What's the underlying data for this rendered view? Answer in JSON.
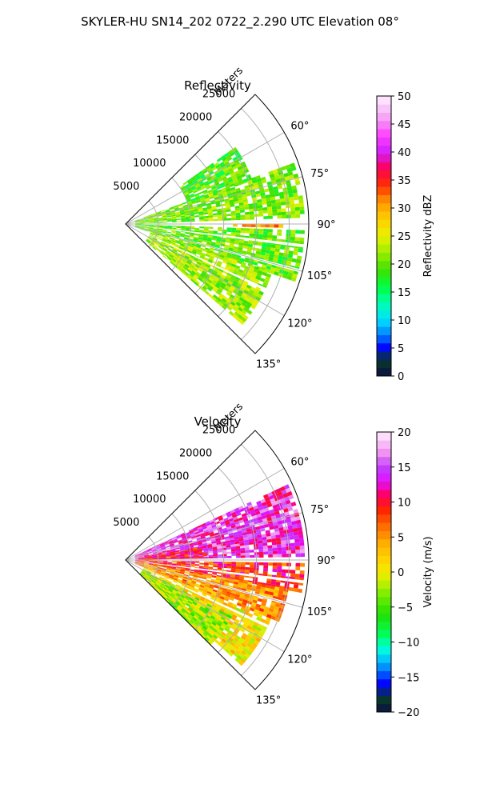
{
  "figure": {
    "suptitle": "SKYLER-HU  SN14_202  0722_2.290 UTC Elevation 08°"
  },
  "chart_data": [
    {
      "type": "heatmap",
      "subtype": "polar-sector-ppi",
      "title": "Reflectivity",
      "radial_label": "Meters",
      "range_ticks": [
        5000,
        10000,
        15000,
        20000,
        25000
      ],
      "range_tick_labels": [
        "5000",
        "10000",
        "15000",
        "20000",
        "25000"
      ],
      "range_max": 28000,
      "azimuth_ticks": [
        60,
        75,
        90,
        105,
        120,
        135
      ],
      "azimuth_tick_labels": [
        "60°",
        "75°",
        "90°",
        "105°",
        "120°",
        "135°"
      ],
      "azimuth_range": [
        45,
        135
      ],
      "grid": true,
      "colorbar": {
        "label": "Reflectivity dBZ",
        "min": 0,
        "max": 50,
        "ticks": [
          0,
          5,
          10,
          15,
          20,
          25,
          30,
          35,
          40,
          45,
          50
        ],
        "tick_labels": [
          "0",
          "5",
          "10",
          "15",
          "20",
          "25",
          "30",
          "35",
          "40",
          "45",
          "50"
        ],
        "levels": 34,
        "stops": [
          [
            0,
            "#0a1040"
          ],
          [
            3,
            "#0a3a2a"
          ],
          [
            5,
            "#0000ff"
          ],
          [
            7,
            "#0070ff"
          ],
          [
            10,
            "#00e0ff"
          ],
          [
            13,
            "#00ffb0"
          ],
          [
            16,
            "#00ff40"
          ],
          [
            19,
            "#40e000"
          ],
          [
            22,
            "#9aee00"
          ],
          [
            25,
            "#eaf000"
          ],
          [
            28,
            "#ffd000"
          ],
          [
            31,
            "#ff9a00"
          ],
          [
            34,
            "#ff3000"
          ],
          [
            37,
            "#ff0050"
          ],
          [
            40,
            "#d020ff"
          ],
          [
            43,
            "#ff40ff"
          ],
          [
            46,
            "#f4a0f4"
          ],
          [
            50,
            "#fff0ff"
          ]
        ]
      },
      "regions": [
        {
          "az": [
            70,
            88
          ],
          "r": [
            1500,
            27000
          ],
          "value": 21
        },
        {
          "az": [
            92,
            108
          ],
          "r": [
            1500,
            27000
          ],
          "value": 20
        },
        {
          "az": [
            108,
            130
          ],
          "r": [
            4000,
            23000
          ],
          "value": 22
        },
        {
          "az": [
            55,
            70
          ],
          "r": [
            10000,
            20000
          ],
          "value": 19
        },
        {
          "az": [
            89,
            91
          ],
          "r": [
            15000,
            24000
          ],
          "value": 30
        }
      ],
      "gaps_azimuth": [
        89.5,
        97,
        105,
        115
      ],
      "value_range_observed": [
        12,
        38
      ]
    },
    {
      "type": "heatmap",
      "subtype": "polar-sector-ppi",
      "title": "Velocity",
      "radial_label": "Meters",
      "range_ticks": [
        5000,
        10000,
        15000,
        20000,
        25000
      ],
      "range_tick_labels": [
        "5000",
        "10000",
        "15000",
        "20000",
        "25000"
      ],
      "range_max": 28000,
      "azimuth_ticks": [
        60,
        75,
        90,
        105,
        120,
        135
      ],
      "azimuth_tick_labels": [
        "60°",
        "75°",
        "90°",
        "105°",
        "120°",
        "135°"
      ],
      "azimuth_range": [
        45,
        135
      ],
      "grid": true,
      "colorbar": {
        "label": "Velocity (m/s)",
        "min": -20,
        "max": 20,
        "ticks": [
          -20,
          -15,
          -10,
          -5,
          0,
          5,
          10,
          15,
          20
        ],
        "tick_labels": [
          "−20",
          "−15",
          "−10",
          "−5",
          "0",
          "5",
          "10",
          "15",
          "20"
        ],
        "levels": 34,
        "stops": [
          [
            -20,
            "#0a1040"
          ],
          [
            -18,
            "#0a3a2a"
          ],
          [
            -16,
            "#0000ff"
          ],
          [
            -13,
            "#00b0ff"
          ],
          [
            -11,
            "#00ffe0"
          ],
          [
            -9,
            "#00ff60"
          ],
          [
            -6,
            "#20e000"
          ],
          [
            -3,
            "#80ee00"
          ],
          [
            -1,
            "#d8f000"
          ],
          [
            1,
            "#ffe000"
          ],
          [
            4,
            "#ffb000"
          ],
          [
            7,
            "#ff6000"
          ],
          [
            9,
            "#ff2000"
          ],
          [
            11,
            "#ff0060"
          ],
          [
            13,
            "#e010ff"
          ],
          [
            15,
            "#c040ff"
          ],
          [
            17,
            "#f090f0"
          ],
          [
            20,
            "#fff0ff"
          ]
        ]
      },
      "regions": [
        {
          "az": [
            65,
            88
          ],
          "r": [
            1500,
            27000
          ],
          "value": 14
        },
        {
          "az": [
            80,
            89
          ],
          "r": [
            2000,
            12000
          ],
          "value": 10
        },
        {
          "az": [
            91,
            100
          ],
          "r": [
            1500,
            27000
          ],
          "value": 9
        },
        {
          "az": [
            100,
            112
          ],
          "r": [
            1500,
            25000
          ],
          "value": 5
        },
        {
          "az": [
            112,
            132
          ],
          "r": [
            3000,
            24000
          ],
          "value": 1
        },
        {
          "az": [
            118,
            135
          ],
          "r": [
            3000,
            18000
          ],
          "value": -2
        }
      ],
      "gaps_azimuth": [
        89.5,
        97,
        105,
        115
      ],
      "value_range_observed": [
        -12,
        16
      ]
    }
  ]
}
